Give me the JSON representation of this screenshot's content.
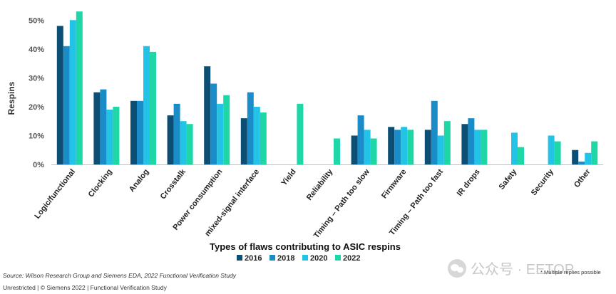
{
  "chart_data": {
    "type": "bar",
    "title": "",
    "xlabel": "Types of flaws contributing to ASIC respins",
    "ylabel": "Respins",
    "ylim": [
      0,
      55
    ],
    "yticks": [
      "0%",
      "10%",
      "20%",
      "30%",
      "40%",
      "50%"
    ],
    "ytick_values": [
      0,
      10,
      20,
      30,
      40,
      50
    ],
    "grid": false,
    "legend_position": "bottom-center",
    "categories": [
      "Logic/functional",
      "Clocking",
      "Analog",
      "Crosstalk",
      "Power consumption",
      "mixed-signal interface",
      "Yield",
      "Reliability",
      "Timing – Path too slow",
      "Firmware",
      "Timing – Path too fast",
      "IR drops",
      "Safety",
      "Security",
      "Other"
    ],
    "series": [
      {
        "name": "2016",
        "color": "#0d4f74",
        "values": [
          48,
          25,
          22,
          17,
          34,
          16,
          null,
          null,
          10,
          13,
          12,
          14,
          null,
          null,
          5
        ]
      },
      {
        "name": "2018",
        "color": "#1a8dc8",
        "values": [
          41,
          26,
          22,
          21,
          28,
          25,
          null,
          null,
          17,
          12,
          22,
          16,
          null,
          null,
          1
        ]
      },
      {
        "name": "2020",
        "color": "#22c3e6",
        "values": [
          50,
          19,
          41,
          15,
          21,
          20,
          null,
          null,
          12,
          13,
          10,
          12,
          11,
          10,
          4
        ]
      },
      {
        "name": "2022",
        "color": "#1ed6a6",
        "values": [
          53,
          20,
          39,
          14,
          24,
          18,
          21,
          9,
          9,
          12,
          15,
          12,
          6,
          8,
          8
        ]
      }
    ]
  },
  "footer": {
    "source": "Source: Wilson Research Group and Siemens EDA, 2022 Functional Verification Study",
    "copyright": "Unrestricted | © Siemens 2022 | Functional Verification Study",
    "note": "* Multiple replies possible",
    "watermark_text": "公众号 · EETOP"
  }
}
